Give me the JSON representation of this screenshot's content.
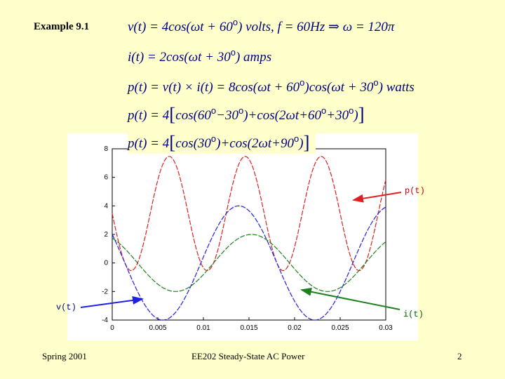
{
  "title": "Example 9.1",
  "equations": {
    "e1a": "v(t) = 4cos(ωt + 60",
    "e1b": ")  volts,   f = 60Hz ⇒ ω = 120π",
    "e2a": "i(t) = 2cos(ωt + 30",
    "e2b": ")  amps",
    "e3a": "p(t) = v(t) × i(t) = 8cos(ωt + 60",
    "e3b": ")cos(ωt + 30",
    "e3c": ")   watts",
    "e4a": "p(t) = 4",
    "e4b": "cos(60",
    "e4c": "−30",
    "e4d": ")+cos(2ωt+60",
    "e4e": "+30",
    "e4f": ")",
    "e5a": "p(t) = 4",
    "e5b": "cos(30",
    "e5c": ")+cos(2ωt+90",
    "e5d": ")",
    "deg": "o",
    "lb": "[",
    "rb": "]"
  },
  "chart_data": {
    "type": "line",
    "xlim": [
      0,
      0.03
    ],
    "ylim": [
      -4,
      8
    ],
    "x_ticks": [
      "0",
      "0.005",
      "0.01",
      "0.015",
      "0.02",
      "0.025",
      "0.03"
    ],
    "y_ticks": [
      "-4",
      "-2",
      "0",
      "2",
      "4",
      "6",
      "8"
    ],
    "series": [
      {
        "name": "p(t)",
        "color": "#e02020",
        "formula": "4*cos(30deg) + 4*cos(2*120*pi*t + 90deg)"
      },
      {
        "name": "v(t)",
        "color": "#2020e0",
        "formula": "4*cos(120*pi*t + 60deg)"
      },
      {
        "name": "i(t)",
        "color": "#208020",
        "formula": "2*cos(120*pi*t + 30deg)"
      }
    ],
    "annotations": [
      {
        "text": "p(t)",
        "color": "#c00000",
        "arrow_color": "#e02020"
      },
      {
        "text": "v(t)",
        "color": "#000080",
        "arrow_color": "#2020e0"
      },
      {
        "text": "i(t)",
        "color": "#006000",
        "arrow_color": "#208020"
      }
    ]
  },
  "footer": {
    "left": "Spring 2001",
    "center": "EE202 Steady-State AC Power",
    "page": "2"
  }
}
